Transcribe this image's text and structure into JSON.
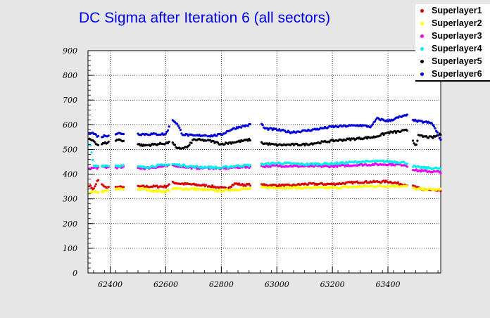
{
  "chart_data": {
    "type": "scatter",
    "title": "DC Sigma after Iteration 6 (all sectors)",
    "xlabel": "",
    "ylabel": "",
    "xlim": [
      62320,
      63590
    ],
    "ylim": [
      0,
      900
    ],
    "xticks": [
      "62400",
      "62600",
      "62800",
      "63000",
      "63200",
      "63400"
    ],
    "yticks": [
      "0",
      "100",
      "200",
      "300",
      "400",
      "500",
      "600",
      "700",
      "800",
      "900"
    ],
    "grid": true,
    "legend_position": "top-right",
    "segments": [
      [
        62325,
        62360
      ],
      [
        62370,
        62395
      ],
      [
        62420,
        62450
      ],
      [
        62500,
        62615
      ],
      [
        62625,
        62745
      ],
      [
        62752,
        62905
      ],
      [
        62945,
        63470
      ],
      [
        63490,
        63590
      ]
    ],
    "series": [
      {
        "name": "Superlayer1",
        "color": "#dd0000",
        "anchors": [
          [
            62325,
            355
          ],
          [
            62340,
            338
          ],
          [
            62355,
            376
          ],
          [
            62380,
            347
          ],
          [
            62430,
            347
          ],
          [
            62520,
            350
          ],
          [
            62600,
            350
          ],
          [
            62625,
            366
          ],
          [
            62650,
            362
          ],
          [
            62700,
            358
          ],
          [
            62760,
            352
          ],
          [
            62800,
            344
          ],
          [
            62820,
            343
          ],
          [
            62850,
            362
          ],
          [
            62880,
            356
          ],
          [
            62905,
            358
          ],
          [
            62950,
            356
          ],
          [
            63050,
            354
          ],
          [
            63100,
            360
          ],
          [
            63200,
            360
          ],
          [
            63300,
            368
          ],
          [
            63400,
            370
          ],
          [
            63460,
            358
          ],
          [
            63500,
            348
          ],
          [
            63520,
            338
          ],
          [
            63590,
            332
          ]
        ]
      },
      {
        "name": "Superlayer2",
        "color": "#ffff00",
        "anchors": [
          [
            62325,
            325
          ],
          [
            62380,
            330
          ],
          [
            62430,
            340
          ],
          [
            62520,
            340
          ],
          [
            62560,
            332
          ],
          [
            62600,
            330
          ],
          [
            62625,
            341
          ],
          [
            62700,
            340
          ],
          [
            62800,
            332
          ],
          [
            62820,
            336
          ],
          [
            62880,
            340
          ],
          [
            62905,
            340
          ],
          [
            62950,
            346
          ],
          [
            63100,
            345
          ],
          [
            63200,
            345
          ],
          [
            63300,
            350
          ],
          [
            63400,
            352
          ],
          [
            63460,
            352
          ],
          [
            63500,
            340
          ],
          [
            63590,
            337
          ]
        ]
      },
      {
        "name": "Superlayer3",
        "color": "#ee00ee",
        "anchors": [
          [
            62325,
            424
          ],
          [
            62380,
            428
          ],
          [
            62430,
            428
          ],
          [
            62520,
            424
          ],
          [
            62600,
            432
          ],
          [
            62625,
            436
          ],
          [
            62700,
            425
          ],
          [
            62760,
            425
          ],
          [
            62800,
            422
          ],
          [
            62850,
            428
          ],
          [
            62905,
            430
          ],
          [
            62950,
            432
          ],
          [
            63000,
            434
          ],
          [
            63100,
            432
          ],
          [
            63200,
            432
          ],
          [
            63300,
            438
          ],
          [
            63400,
            440
          ],
          [
            63460,
            438
          ],
          [
            63500,
            415
          ],
          [
            63590,
            408
          ]
        ]
      },
      {
        "name": "Superlayer4",
        "color": "#00eeee",
        "anchors": [
          [
            62325,
            520
          ],
          [
            62330,
            510
          ],
          [
            62340,
            432
          ],
          [
            62380,
            435
          ],
          [
            62430,
            435
          ],
          [
            62520,
            428
          ],
          [
            62600,
            438
          ],
          [
            62625,
            440
          ],
          [
            62700,
            430
          ],
          [
            62760,
            428
          ],
          [
            62800,
            425
          ],
          [
            62850,
            433
          ],
          [
            62905,
            436
          ],
          [
            62950,
            440
          ],
          [
            63000,
            445
          ],
          [
            63100,
            440
          ],
          [
            63200,
            443
          ],
          [
            63300,
            450
          ],
          [
            63400,
            452
          ],
          [
            63460,
            447
          ],
          [
            63500,
            428
          ],
          [
            63590,
            422
          ]
        ]
      },
      {
        "name": "Superlayer5",
        "color": "#000000",
        "anchors": [
          [
            62325,
            540
          ],
          [
            62340,
            536
          ],
          [
            62355,
            518
          ],
          [
            62380,
            525
          ],
          [
            62430,
            540
          ],
          [
            62520,
            516
          ],
          [
            62600,
            525
          ],
          [
            62625,
            530
          ],
          [
            62640,
            502
          ],
          [
            62680,
            510
          ],
          [
            62700,
            540
          ],
          [
            62760,
            535
          ],
          [
            62800,
            522
          ],
          [
            62850,
            530
          ],
          [
            62905,
            540
          ],
          [
            62950,
            525
          ],
          [
            63000,
            518
          ],
          [
            63100,
            520
          ],
          [
            63200,
            535
          ],
          [
            63300,
            545
          ],
          [
            63350,
            550
          ],
          [
            63400,
            568
          ],
          [
            63440,
            572
          ],
          [
            63470,
            578
          ],
          [
            63500,
            515
          ],
          [
            63510,
            555
          ],
          [
            63560,
            548
          ],
          [
            63590,
            562
          ]
        ]
      },
      {
        "name": "Superlayer6",
        "color": "#0000dd",
        "anchors": [
          [
            62325,
            570
          ],
          [
            62340,
            565
          ],
          [
            62360,
            550
          ],
          [
            62380,
            555
          ],
          [
            62430,
            565
          ],
          [
            62520,
            562
          ],
          [
            62600,
            562
          ],
          [
            62625,
            620
          ],
          [
            62640,
            605
          ],
          [
            62660,
            562
          ],
          [
            62700,
            555
          ],
          [
            62745,
            558
          ],
          [
            62760,
            555
          ],
          [
            62800,
            560
          ],
          [
            62830,
            578
          ],
          [
            62860,
            590
          ],
          [
            62905,
            600
          ],
          [
            62945,
            605
          ],
          [
            62955,
            585
          ],
          [
            63000,
            580
          ],
          [
            63050,
            570
          ],
          [
            63100,
            575
          ],
          [
            63200,
            592
          ],
          [
            63300,
            598
          ],
          [
            63340,
            592
          ],
          [
            63360,
            625
          ],
          [
            63380,
            620
          ],
          [
            63400,
            615
          ],
          [
            63440,
            630
          ],
          [
            63470,
            638
          ],
          [
            63500,
            615
          ],
          [
            63540,
            610
          ],
          [
            63560,
            605
          ],
          [
            63590,
            540
          ]
        ]
      }
    ]
  }
}
